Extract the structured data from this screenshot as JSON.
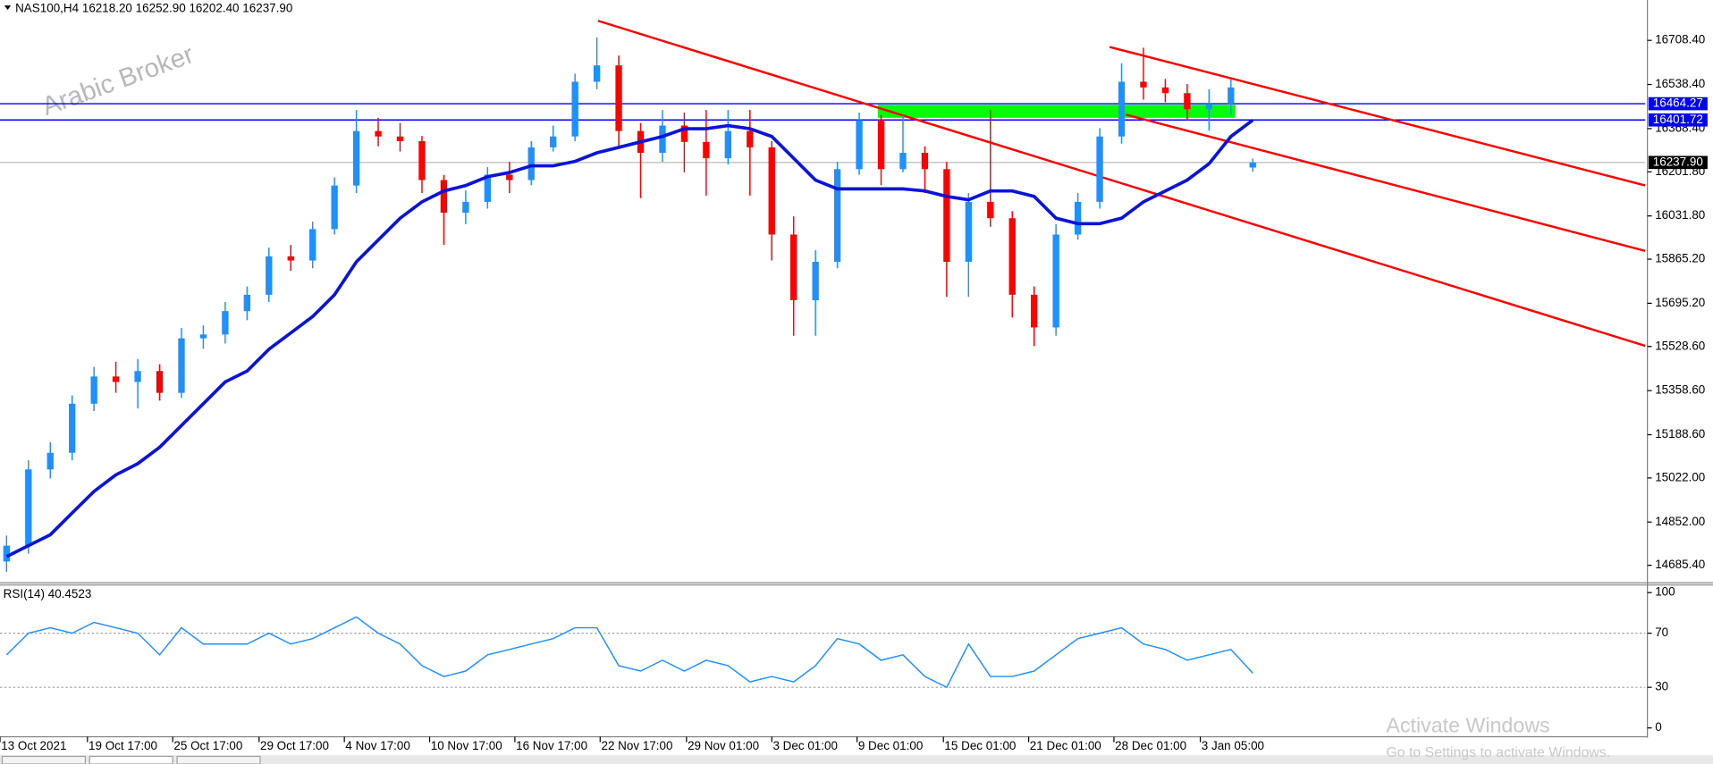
{
  "chart_data": [
    {
      "type": "candlestick",
      "header": "NAS100,H4  16218.20 16252.90 16202.40 16237.90",
      "watermark": "Arabic Broker",
      "up_color": "#1e90ff",
      "down_color": "#ff0000",
      "open": [
        14700,
        14761,
        15055,
        15119,
        15308,
        15413,
        15392,
        15434,
        15350,
        15560,
        15575,
        15665,
        15728,
        15876,
        15860,
        15981,
        16149,
        16359,
        16338,
        16320,
        16170,
        16044,
        16086,
        16191,
        16170,
        16296,
        16338,
        16549,
        16612,
        16359,
        16275,
        16380,
        16317,
        16254,
        16359,
        16296,
        15960,
        15707,
        15855,
        16212,
        16401,
        16212,
        16275,
        16212,
        15855,
        16086,
        16023,
        15728,
        15602,
        15960,
        16086,
        16338,
        16549,
        16527,
        16505,
        16443,
        16464,
        16218.2
      ],
      "high": [
        14800,
        15090,
        15160,
        15340,
        15450,
        15470,
        15480,
        15460,
        15600,
        15610,
        15700,
        15760,
        15910,
        15920,
        16010,
        16180,
        16440,
        16410,
        16390,
        16340,
        16190,
        16130,
        16220,
        16240,
        16320,
        16380,
        16580,
        16720,
        16650,
        16390,
        16440,
        16430,
        16440,
        16440,
        16440,
        16320,
        16030,
        15900,
        16240,
        16430,
        16420,
        16420,
        16300,
        16240,
        16120,
        16440,
        16050,
        15760,
        16000,
        16120,
        16370,
        16620,
        16680,
        16560,
        16540,
        16520,
        16560,
        16252.9
      ],
      "low": [
        14660,
        14730,
        15020,
        15090,
        15280,
        15350,
        15290,
        15320,
        15330,
        15520,
        15540,
        15630,
        15700,
        15820,
        15830,
        15960,
        16120,
        16300,
        16280,
        16120,
        15920,
        16000,
        16060,
        16120,
        16150,
        16280,
        16320,
        16520,
        16300,
        16100,
        16240,
        16200,
        16110,
        16230,
        16110,
        15860,
        15570,
        15570,
        15830,
        16190,
        16150,
        16200,
        16120,
        15720,
        15720,
        15990,
        15640,
        15530,
        15570,
        15940,
        16060,
        16310,
        16480,
        16470,
        16400,
        16360,
        16420,
        16202.4
      ],
      "close": [
        14761,
        15055,
        15119,
        15308,
        15413,
        15392,
        15434,
        15350,
        15560,
        15575,
        15665,
        15728,
        15876,
        15860,
        15981,
        16149,
        16359,
        16338,
        16320,
        16170,
        16044,
        16086,
        16191,
        16170,
        16296,
        16338,
        16549,
        16612,
        16359,
        16275,
        16380,
        16317,
        16254,
        16359,
        16296,
        15960,
        15707,
        15855,
        16212,
        16401,
        16212,
        16275,
        16212,
        15855,
        16086,
        16023,
        15728,
        15602,
        15960,
        16086,
        16338,
        16549,
        16527,
        16505,
        16443,
        16464,
        16527,
        16237.9
      ],
      "overlays": [
        {
          "color": "#0a14d8",
          "values": [
            14719,
            14761,
            14803,
            14887,
            14970,
            15034,
            15077,
            15140,
            15224,
            15308,
            15392,
            15434,
            15518,
            15581,
            15644,
            15728,
            15855,
            15939,
            16023,
            16086,
            16128,
            16149,
            16183,
            16199,
            16225,
            16225,
            16242,
            16275,
            16296,
            16317,
            16338,
            16368,
            16368,
            16380,
            16368,
            16338,
            16254,
            16170,
            16136,
            16136,
            16136,
            16136,
            16128,
            16107,
            16094,
            16128,
            16128,
            16107,
            16023,
            16002,
            16002,
            16023,
            16086,
            16128,
            16170,
            16233,
            16338,
            16401
          ]
        }
      ],
      "xlim": [
        -0.3,
        74.95
      ],
      "xticks": [
        {
          "value": -0.3,
          "label": "13 Oct 2021"
        },
        {
          "value": 3.7,
          "label": "19 Oct 17:00"
        },
        {
          "value": 7.6,
          "label": "25 Oct 17:00"
        },
        {
          "value": 11.55,
          "label": "29 Oct 17:00"
        },
        {
          "value": 15.45,
          "label": "4 Nov 17:00"
        },
        {
          "value": 19.35,
          "label": "10 Nov 17:00"
        },
        {
          "value": 23.25,
          "label": "16 Nov 17:00"
        },
        {
          "value": 27.15,
          "label": "22 Nov 17:00"
        },
        {
          "value": 31.1,
          "label": "29 Nov 01:00"
        },
        {
          "value": 35,
          "label": "3 Dec 01:00"
        },
        {
          "value": 38.9,
          "label": "9 Dec 01:00"
        },
        {
          "value": 42.85,
          "label": "15 Dec 01:00"
        },
        {
          "value": 46.75,
          "label": "21 Dec 01:00"
        },
        {
          "value": 50.65,
          "label": "28 Dec 01:00"
        },
        {
          "value": 54.6,
          "label": "3 Jan 05:00"
        }
      ],
      "ylim": [
        14622,
        16864
      ],
      "yticks": [
        {
          "value": 16708.4,
          "label": "16708.40"
        },
        {
          "value": 16538.4,
          "label": "16538.40"
        },
        {
          "value": 16368.4,
          "label": "16368.40"
        },
        {
          "value": 16201.8,
          "label": "16201.80"
        },
        {
          "value": 16031.8,
          "label": "16031.80"
        },
        {
          "value": 15865.2,
          "label": "15865.20"
        },
        {
          "value": 15695.2,
          "label": "15695.20"
        },
        {
          "value": 15528.6,
          "label": "15528.60"
        },
        {
          "value": 15358.6,
          "label": "15358.60"
        },
        {
          "value": 15188.6,
          "label": "15188.60"
        },
        {
          "value": 15022,
          "label": "15022.00"
        },
        {
          "value": 14852,
          "label": "14852.00"
        },
        {
          "value": 14685.4,
          "label": "14685.40"
        }
      ],
      "levels": [
        {
          "value": 16464.27,
          "color": "#0000ff"
        },
        {
          "value": 16401.72,
          "color": "#0000ff"
        },
        {
          "value": 16237.9,
          "label": "16237.90",
          "color": "#000000",
          "line_color": "#c0c0c0"
        }
      ],
      "trendlines": [
        {
          "from": [
            27.05,
            16784
          ],
          "to": [
            74.95,
            15531
          ],
          "color": "#ff0000"
        },
        {
          "from": [
            50.45,
            16683
          ],
          "to": [
            74.95,
            16149
          ],
          "color": "#ff0000"
        },
        {
          "from": [
            51.2,
            16422
          ],
          "to": [
            74.95,
            15897
          ],
          "color": "#ff0000"
        }
      ],
      "zones": [
        {
          "x": [
            39.85,
            56.2
          ],
          "y": [
            16410,
            16460
          ],
          "color": "#00ff00"
        }
      ]
    },
    {
      "type": "line",
      "title": "RSI(14) 40.4523",
      "color": "#1e90ff",
      "values": [
        54,
        70,
        74,
        70,
        78,
        74,
        70,
        54,
        74,
        62,
        62,
        62,
        70,
        62,
        66,
        74,
        82,
        70,
        62,
        46,
        38,
        42,
        54,
        58,
        62,
        66,
        74,
        74,
        46,
        42,
        50,
        42,
        50,
        46,
        34,
        38,
        34,
        46,
        66,
        62,
        50,
        54,
        38,
        30,
        62,
        38,
        38,
        42,
        54,
        66,
        70,
        74,
        62,
        58,
        50,
        54,
        58,
        40.45
      ],
      "xlim": [
        -0.3,
        74.95
      ],
      "ylim": [
        -6.5,
        104.8
      ],
      "yticks": [
        0,
        30,
        70,
        100
      ],
      "levels": [
        30,
        70
      ]
    }
  ],
  "system": {
    "activate": "Activate Windows",
    "settings": "Go to Settings to activate Windows."
  }
}
